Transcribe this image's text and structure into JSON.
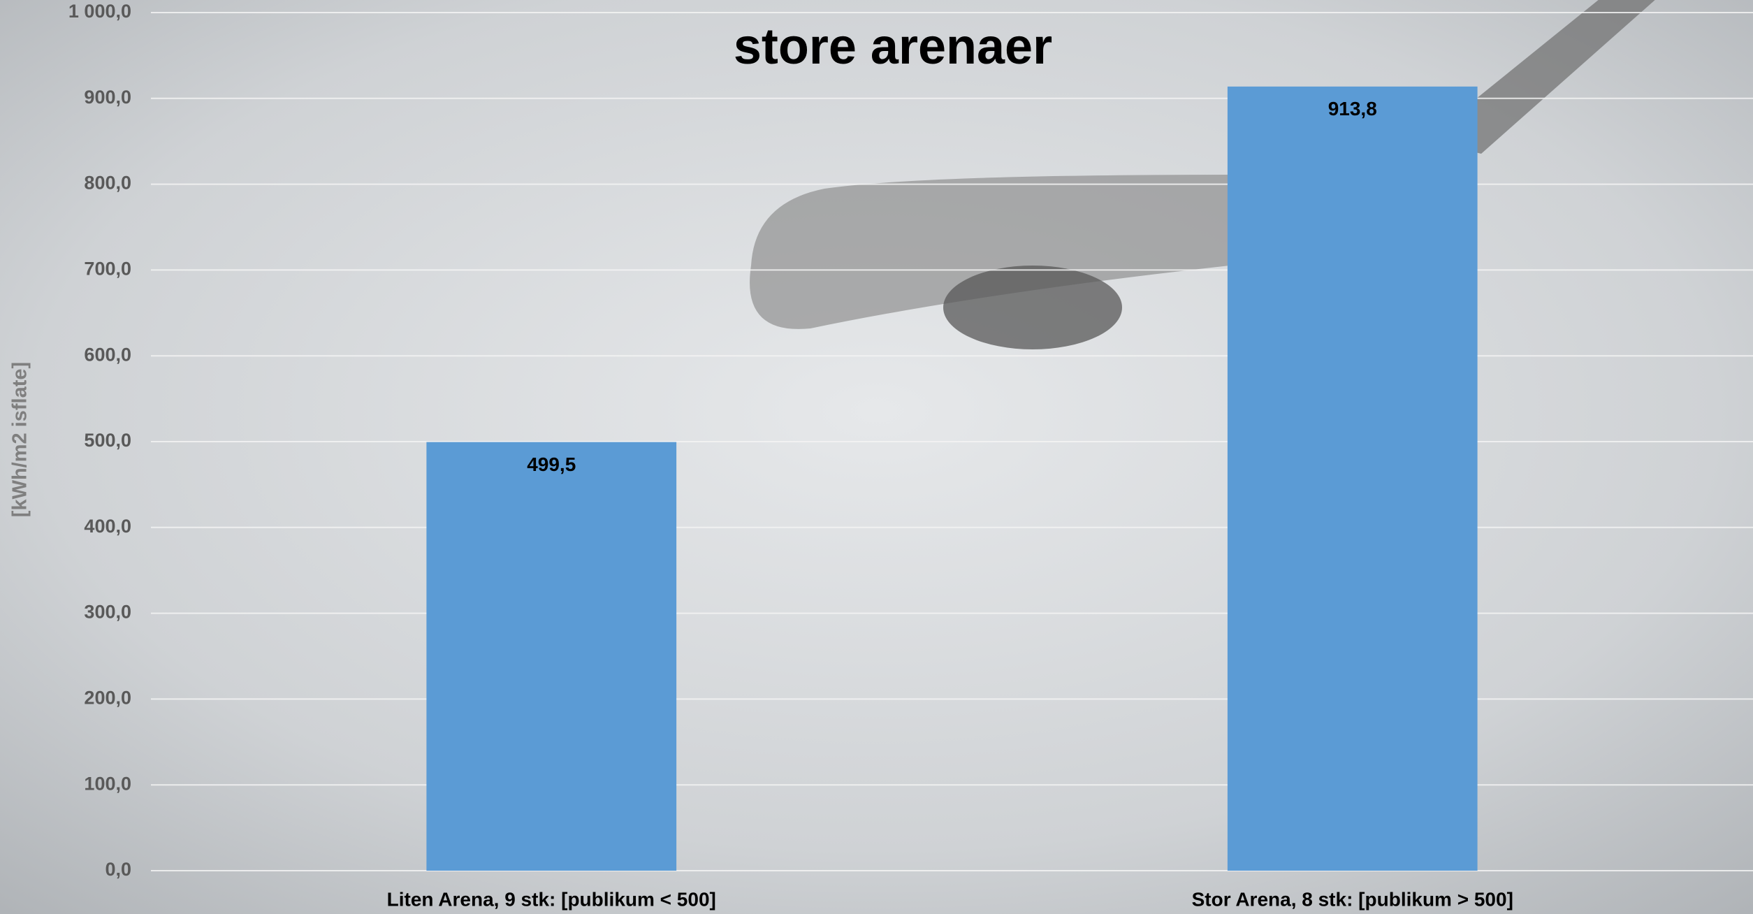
{
  "chart_data": {
    "type": "bar",
    "title": "store arenaer",
    "y_label": "[kWh/m2 isflate]",
    "categories": [
      "Liten Arena, 9 stk: [publikum < 500]",
      "Stor Arena, 8 stk: [publikum > 500]"
    ],
    "values": [
      499.5,
      913.8
    ],
    "value_labels": [
      "499,5",
      "913,8"
    ],
    "color": "#5b9bd5",
    "ylim": [
      0,
      1000
    ],
    "yticks": [
      {
        "value": 0,
        "label": "0,0"
      },
      {
        "value": 100,
        "label": "100,0"
      },
      {
        "value": 200,
        "label": "200,0"
      },
      {
        "value": 300,
        "label": "300,0"
      },
      {
        "value": 400,
        "label": "400,0"
      },
      {
        "value": 500,
        "label": "500,0"
      },
      {
        "value": 600,
        "label": "600,0"
      },
      {
        "value": 700,
        "label": "700,0"
      },
      {
        "value": 800,
        "label": "800,0"
      },
      {
        "value": 900,
        "label": "900,0"
      },
      {
        "value": 1000,
        "label": "1 000,0"
      }
    ],
    "grid": true
  }
}
